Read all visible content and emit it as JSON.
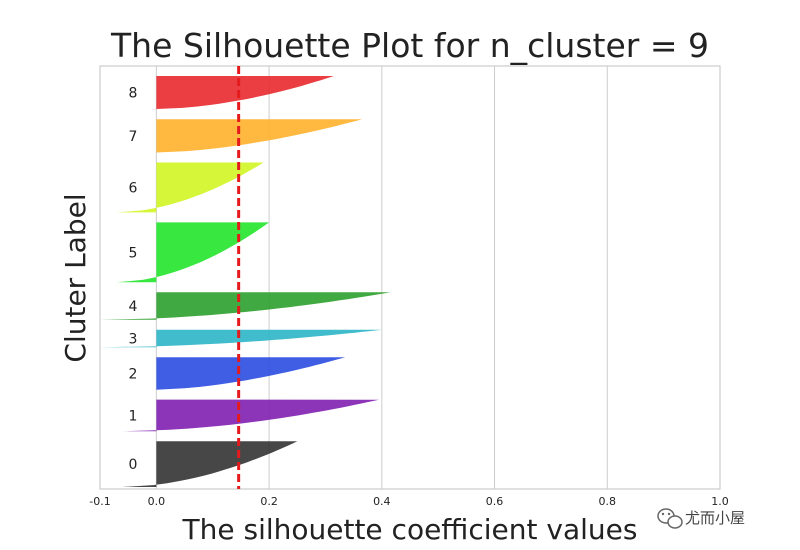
{
  "chart_data": {
    "type": "area",
    "subtype": "silhouette",
    "title": "The Silhouette Plot for n_cluster = 9",
    "xlabel": "The silhouette coefficient values",
    "ylabel": "Cluter Label",
    "xlim": [
      -0.1,
      1.0
    ],
    "xticks": [
      -0.1,
      0.0,
      0.2,
      0.4,
      0.6,
      0.8,
      1.0
    ],
    "xtick_labels": [
      "-0.1",
      "0.0",
      "0.2",
      "0.4",
      "0.6",
      "0.8",
      "1.0"
    ],
    "grid": true,
    "average_silhouette": 0.146,
    "average_line_color": "#e41a1c",
    "clusters": [
      {
        "label": "0",
        "color": "#333333",
        "min": -0.06,
        "max": 0.25,
        "size": 55
      },
      {
        "label": "1",
        "color": "#7f1fb0",
        "min": -0.06,
        "max": 0.395,
        "size": 38
      },
      {
        "label": "2",
        "color": "#2a4de0",
        "min": 0.0,
        "max": 0.335,
        "size": 39
      },
      {
        "label": "3",
        "color": "#2cb5c7",
        "min": -0.1,
        "max": 0.4,
        "size": 21
      },
      {
        "label": "4",
        "color": "#2ca02c",
        "min": -0.1,
        "max": 0.415,
        "size": 33
      },
      {
        "label": "5",
        "color": "#22e52b",
        "min": -0.07,
        "max": 0.2,
        "size": 72
      },
      {
        "label": "6",
        "color": "#d0f524",
        "min": -0.07,
        "max": 0.19,
        "size": 60
      },
      {
        "label": "7",
        "color": "#ffb12b",
        "min": 0.0,
        "max": 0.365,
        "size": 40
      },
      {
        "label": "8",
        "color": "#e8292d",
        "min": -0.01,
        "max": 0.315,
        "size": 40
      }
    ]
  },
  "watermark": {
    "text": "尤而小屋",
    "icon": "wechat-icon"
  }
}
